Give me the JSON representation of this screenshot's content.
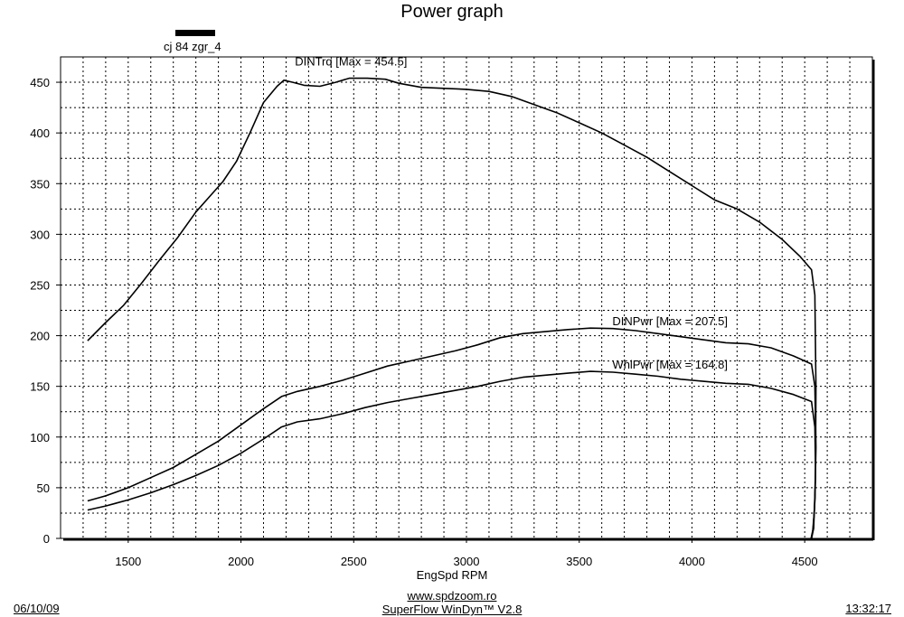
{
  "chart_data": {
    "type": "line",
    "title": "Power graph",
    "legend_label": "cj 84 zgr_4",
    "xlabel": "EngSpd  RPM",
    "xlim": [
      1200,
      4800
    ],
    "ylim": [
      0,
      475
    ],
    "xticks": [
      1500,
      2000,
      2500,
      3000,
      3500,
      4000,
      4500
    ],
    "yticks": [
      0,
      50,
      100,
      150,
      200,
      250,
      300,
      350,
      400,
      450
    ],
    "grid": true,
    "series": [
      {
        "name": "DINTrq",
        "annotation": "DINTrq [Max = 454.5]",
        "x": [
          1320,
          1400,
          1480,
          1560,
          1640,
          1720,
          1800,
          1860,
          1920,
          1980,
          2040,
          2100,
          2160,
          2190,
          2230,
          2280,
          2350,
          2420,
          2480,
          2560,
          2640,
          2700,
          2800,
          2900,
          3000,
          3100,
          3200,
          3300,
          3400,
          3500,
          3600,
          3700,
          3800,
          3900,
          4000,
          4100,
          4200,
          4300,
          4400,
          4480,
          4530,
          4545,
          4550,
          4548,
          4540,
          4530
        ],
        "values": [
          195,
          213,
          230,
          252,
          275,
          297,
          322,
          337,
          352,
          372,
          400,
          430,
          446,
          452,
          450,
          447,
          446,
          450,
          454,
          454,
          453,
          449,
          445,
          444,
          443,
          441,
          436,
          428,
          420,
          410,
          400,
          388,
          376,
          362,
          348,
          334,
          325,
          312,
          295,
          278,
          265,
          240,
          150,
          60,
          10,
          0
        ]
      },
      {
        "name": "DINPwr",
        "annotation": "DINPwr [Max = 207.5]",
        "x": [
          1320,
          1400,
          1500,
          1600,
          1700,
          1800,
          1900,
          2000,
          2100,
          2180,
          2250,
          2350,
          2450,
          2550,
          2650,
          2750,
          2850,
          2950,
          3050,
          3150,
          3250,
          3350,
          3450,
          3550,
          3650,
          3750,
          3850,
          3950,
          4050,
          4150,
          4250,
          4350,
          4450,
          4530,
          4545,
          4550,
          4546,
          4538,
          4530
        ],
        "values": [
          37,
          42,
          50,
          60,
          70,
          83,
          96,
          112,
          128,
          140,
          145,
          150,
          156,
          163,
          170,
          175,
          180,
          185,
          191,
          198,
          202,
          204,
          206,
          207.5,
          207,
          205,
          202,
          199,
          196,
          193,
          192,
          188,
          180,
          172,
          150,
          90,
          40,
          10,
          0
        ]
      },
      {
        "name": "WhlPwr",
        "annotation": "WhlPwr [Max = 164.8]",
        "x": [
          1320,
          1400,
          1500,
          1600,
          1700,
          1800,
          1900,
          2000,
          2100,
          2180,
          2250,
          2350,
          2450,
          2550,
          2650,
          2750,
          2850,
          2950,
          3050,
          3150,
          3250,
          3350,
          3450,
          3550,
          3650,
          3750,
          3850,
          3950,
          4050,
          4150,
          4250,
          4350,
          4450,
          4530,
          4545,
          4548,
          4544,
          4536,
          4528
        ],
        "values": [
          28,
          32,
          38,
          45,
          53,
          62,
          72,
          84,
          98,
          110,
          115,
          118,
          123,
          129,
          134,
          138,
          142,
          146,
          150,
          155,
          159,
          161,
          163,
          164.8,
          164,
          162,
          160,
          157,
          155,
          153,
          152,
          148,
          142,
          135,
          110,
          70,
          30,
          8,
          0
        ]
      }
    ]
  },
  "footer": {
    "date": "06/10/09",
    "url": "www.spdzoom.ro",
    "software": "SuperFlow WinDyn™ V2.8",
    "time": "13:32:17"
  }
}
